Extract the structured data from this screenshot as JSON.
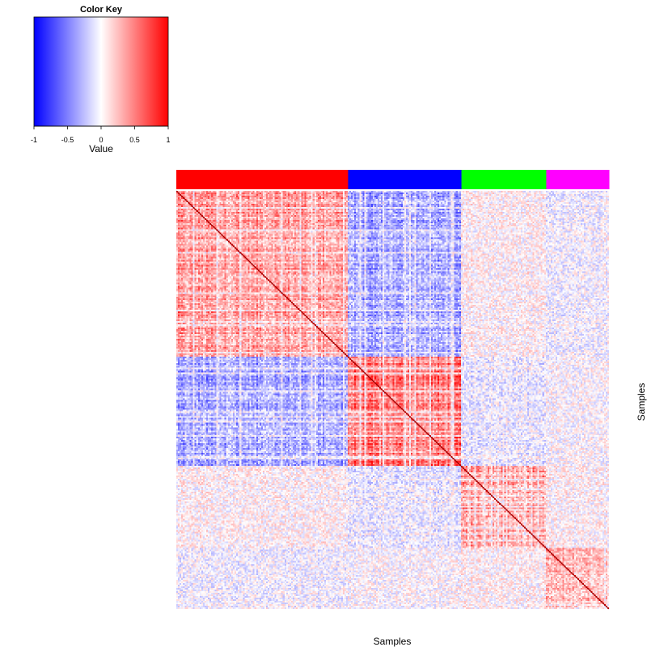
{
  "chart_data": {
    "type": "heatmap",
    "title": "",
    "xlabel": "Samples",
    "ylabel": "Samples",
    "color_key": {
      "title": "Color Key",
      "axis_label": "Value",
      "range": [
        -1,
        1
      ],
      "ticks": [
        "-1",
        "-0.5",
        "0",
        "0.5",
        "1"
      ],
      "tick_values": [
        -1,
        -0.5,
        0,
        0.5,
        1
      ],
      "colors": {
        "low": "#0000ff",
        "mid": "#ffffff",
        "high": "#ff0000"
      }
    },
    "groups": [
      {
        "color": "#ff0000",
        "fraction": 0.397
      },
      {
        "color": "#0000ff",
        "fraction": 0.262
      },
      {
        "color": "#00ff00",
        "fraction": 0.196
      },
      {
        "color": "#ff00ff",
        "fraction": 0.145
      }
    ],
    "block_mean_correlation": [
      [
        0.35,
        -0.3,
        0.05,
        -0.05
      ],
      [
        -0.3,
        0.45,
        -0.1,
        0.0
      ],
      [
        0.05,
        -0.1,
        0.35,
        0.05
      ],
      [
        -0.05,
        0.0,
        0.05,
        0.25
      ]
    ],
    "diagonal_value": 1
  }
}
